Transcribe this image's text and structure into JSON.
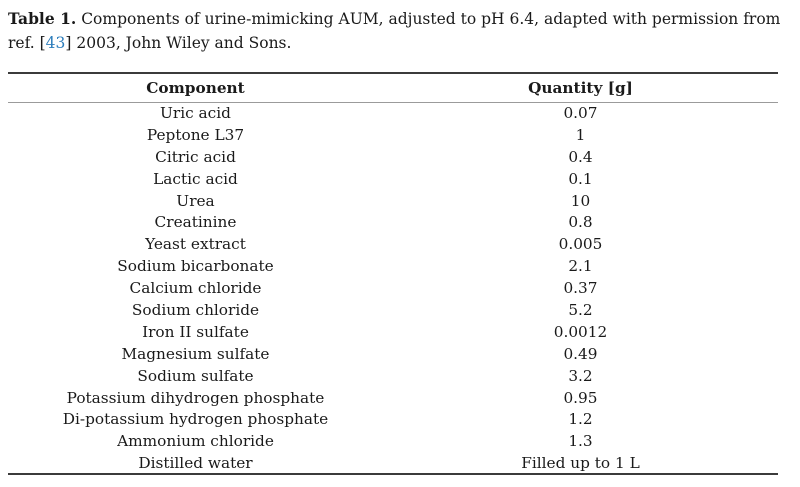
{
  "caption": {
    "label": "Table 1.",
    "text_before_ref": " Components of urine-mimicking AUM, adjusted to pH 6.4, adapted with permission from ref. [",
    "ref_number": "43",
    "text_after_ref": "] 2003, John Wiley and Sons."
  },
  "table": {
    "headers": [
      "Component",
      "Quantity [g]"
    ],
    "rows": [
      {
        "component": "Uric acid",
        "quantity": "0.07"
      },
      {
        "component": "Peptone L37",
        "quantity": "1"
      },
      {
        "component": "Citric acid",
        "quantity": "0.4"
      },
      {
        "component": "Lactic acid",
        "quantity": "0.1"
      },
      {
        "component": "Urea",
        "quantity": "10"
      },
      {
        "component": "Creatinine",
        "quantity": "0.8"
      },
      {
        "component": "Yeast extract",
        "quantity": "0.005"
      },
      {
        "component": "Sodium bicarbonate",
        "quantity": "2.1"
      },
      {
        "component": "Calcium chloride",
        "quantity": "0.37"
      },
      {
        "component": "Sodium chloride",
        "quantity": "5.2"
      },
      {
        "component": "Iron II sulfate",
        "quantity": "0.0012"
      },
      {
        "component": "Magnesium sulfate",
        "quantity": "0.49"
      },
      {
        "component": "Sodium sulfate",
        "quantity": "3.2"
      },
      {
        "component": "Potassium dihydrogen phosphate",
        "quantity": "0.95"
      },
      {
        "component": "Di-potassium hydrogen phosphate",
        "quantity": "1.2"
      },
      {
        "component": "Ammonium chloride",
        "quantity": "1.3"
      },
      {
        "component": "Distilled water",
        "quantity": "Filled up to 1 L"
      }
    ]
  },
  "colors": {
    "text": "#1a1a1a",
    "link_blue": "#2e7ebc",
    "rule_dark": "#3b3b3b",
    "rule_light": "#9b9b9b",
    "background": "#ffffff"
  }
}
